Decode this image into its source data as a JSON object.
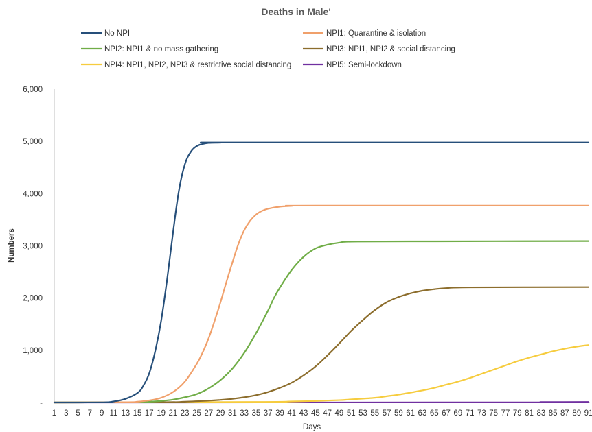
{
  "chart_data": {
    "type": "line",
    "title": "Deaths in Male'",
    "xlabel": "Days",
    "ylabel": "Numbers",
    "ylim": [
      0,
      6000
    ],
    "yticks": [
      0,
      1000,
      2000,
      3000,
      4000,
      5000,
      6000
    ],
    "ytick_labels": [
      "-",
      "1,000",
      "2,000",
      "3,000",
      "4,000",
      "5,000",
      "6,000"
    ],
    "xlim": [
      1,
      91
    ],
    "xtick_labels": [
      "1",
      "3",
      "5",
      "7",
      "9",
      "11",
      "13",
      "15",
      "17",
      "19",
      "21",
      "23",
      "25",
      "27",
      "29",
      "31",
      "33",
      "35",
      "37",
      "39",
      "41",
      "43",
      "45",
      "47",
      "49",
      "51",
      "53",
      "55",
      "57",
      "59",
      "61",
      "63",
      "65",
      "67",
      "69",
      "71",
      "73",
      "75",
      "77",
      "79",
      "81",
      "83",
      "85",
      "87",
      "89",
      "91"
    ],
    "grid": false,
    "legend_position": "top",
    "series": [
      {
        "name": "No NPI",
        "color": "#264f7a",
        "points": [
          [
            1,
            0
          ],
          [
            9,
            2
          ],
          [
            11,
            20
          ],
          [
            13,
            70
          ],
          [
            15,
            180
          ],
          [
            16,
            320
          ],
          [
            17,
            560
          ],
          [
            18,
            980
          ],
          [
            19,
            1560
          ],
          [
            20,
            2350
          ],
          [
            21,
            3250
          ],
          [
            22,
            4060
          ],
          [
            23,
            4560
          ],
          [
            24,
            4800
          ],
          [
            25,
            4910
          ],
          [
            26,
            4950
          ],
          [
            27,
            4970
          ],
          [
            29,
            4975
          ],
          [
            31,
            4980
          ],
          [
            91,
            4980
          ]
        ]
      },
      {
        "name": "NPI1: Quarantine & isolation",
        "color": "#f0a06b",
        "points": [
          [
            1,
            0
          ],
          [
            13,
            5
          ],
          [
            15,
            15
          ],
          [
            17,
            40
          ],
          [
            19,
            90
          ],
          [
            21,
            200
          ],
          [
            23,
            400
          ],
          [
            25,
            740
          ],
          [
            26,
            960
          ],
          [
            27,
            1230
          ],
          [
            28,
            1560
          ],
          [
            29,
            1920
          ],
          [
            30,
            2310
          ],
          [
            31,
            2680
          ],
          [
            32,
            3030
          ],
          [
            33,
            3300
          ],
          [
            34,
            3480
          ],
          [
            35,
            3600
          ],
          [
            36,
            3670
          ],
          [
            37,
            3710
          ],
          [
            39,
            3750
          ],
          [
            41,
            3765
          ],
          [
            45,
            3770
          ],
          [
            91,
            3770
          ]
        ]
      },
      {
        "name": "NPI2: NPI1 & no mass gathering",
        "color": "#70ad47",
        "points": [
          [
            1,
            0
          ],
          [
            15,
            5
          ],
          [
            17,
            15
          ],
          [
            19,
            30
          ],
          [
            21,
            55
          ],
          [
            23,
            100
          ],
          [
            25,
            160
          ],
          [
            27,
            270
          ],
          [
            29,
            430
          ],
          [
            31,
            650
          ],
          [
            33,
            950
          ],
          [
            35,
            1330
          ],
          [
            37,
            1760
          ],
          [
            38,
            2000
          ],
          [
            39,
            2200
          ],
          [
            41,
            2540
          ],
          [
            43,
            2790
          ],
          [
            45,
            2950
          ],
          [
            47,
            3020
          ],
          [
            49,
            3060
          ],
          [
            51,
            3080
          ],
          [
            61,
            3085
          ],
          [
            91,
            3090
          ]
        ]
      },
      {
        "name": "NPI3: NPI1, NPI2 & social distancing",
        "color": "#8c6d2c",
        "points": [
          [
            1,
            0
          ],
          [
            19,
            5
          ],
          [
            23,
            15
          ],
          [
            27,
            35
          ],
          [
            29,
            50
          ],
          [
            31,
            70
          ],
          [
            33,
            100
          ],
          [
            35,
            140
          ],
          [
            37,
            200
          ],
          [
            39,
            280
          ],
          [
            41,
            380
          ],
          [
            43,
            520
          ],
          [
            45,
            690
          ],
          [
            47,
            900
          ],
          [
            49,
            1130
          ],
          [
            51,
            1370
          ],
          [
            53,
            1580
          ],
          [
            55,
            1770
          ],
          [
            57,
            1920
          ],
          [
            59,
            2020
          ],
          [
            61,
            2090
          ],
          [
            63,
            2140
          ],
          [
            65,
            2170
          ],
          [
            67,
            2190
          ],
          [
            71,
            2205
          ],
          [
            91,
            2210
          ]
        ]
      },
      {
        "name": "NPI4: NPI1, NPI2, NPI3 & restrictive social distancing",
        "color": "#f6cc3e",
        "points": [
          [
            1,
            0
          ],
          [
            35,
            10
          ],
          [
            41,
            20
          ],
          [
            45,
            30
          ],
          [
            49,
            45
          ],
          [
            51,
            60
          ],
          [
            55,
            90
          ],
          [
            57,
            120
          ],
          [
            59,
            150
          ],
          [
            61,
            190
          ],
          [
            63,
            230
          ],
          [
            65,
            280
          ],
          [
            67,
            340
          ],
          [
            69,
            400
          ],
          [
            71,
            470
          ],
          [
            73,
            550
          ],
          [
            75,
            630
          ],
          [
            77,
            710
          ],
          [
            79,
            790
          ],
          [
            81,
            860
          ],
          [
            83,
            920
          ],
          [
            85,
            980
          ],
          [
            87,
            1030
          ],
          [
            89,
            1070
          ],
          [
            91,
            1100
          ]
        ]
      },
      {
        "name": "NPI5: Semi-lockdown",
        "color": "#7030a0",
        "points": [
          [
            1,
            0
          ],
          [
            81,
            2
          ],
          [
            83,
            8
          ],
          [
            91,
            10
          ]
        ]
      }
    ]
  }
}
